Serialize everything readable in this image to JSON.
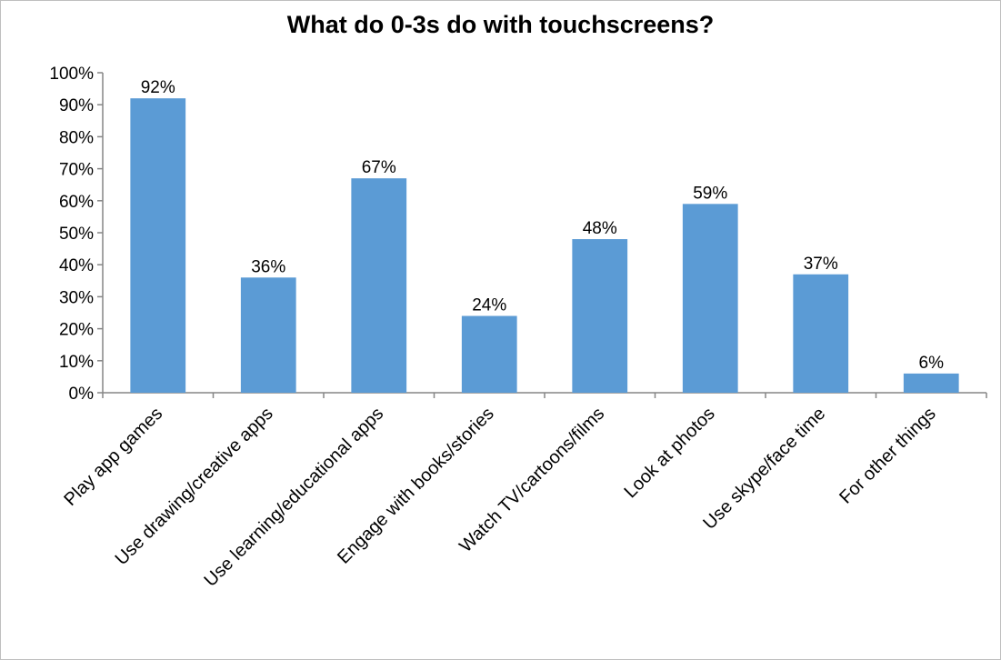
{
  "chart_data": {
    "type": "bar",
    "title": "What do 0-3s do with touchscreens?",
    "xlabel": "",
    "ylabel": "",
    "categories": [
      "Play app games",
      "Use drawing/creative apps",
      "Use learning/educational apps",
      "Engage with books/stories",
      "Watch TV/cartoons/films",
      "Look at photos",
      "Use skype/face time",
      "For other things"
    ],
    "values": [
      92,
      36,
      67,
      24,
      48,
      59,
      37,
      6
    ],
    "data_labels": [
      "92%",
      "36%",
      "67%",
      "24%",
      "48%",
      "59%",
      "37%",
      "6%"
    ],
    "ylim": [
      0,
      100
    ],
    "yticks": [
      0,
      10,
      20,
      30,
      40,
      50,
      60,
      70,
      80,
      90,
      100
    ],
    "ytick_labels": [
      "0%",
      "10%",
      "20%",
      "30%",
      "40%",
      "50%",
      "60%",
      "70%",
      "80%",
      "90%",
      "100%"
    ],
    "grid": false,
    "legend": "none",
    "colors": {
      "bar": "#5b9bd5",
      "axis": "#868686",
      "text": "#000000",
      "border": "#bfbfbf"
    }
  }
}
